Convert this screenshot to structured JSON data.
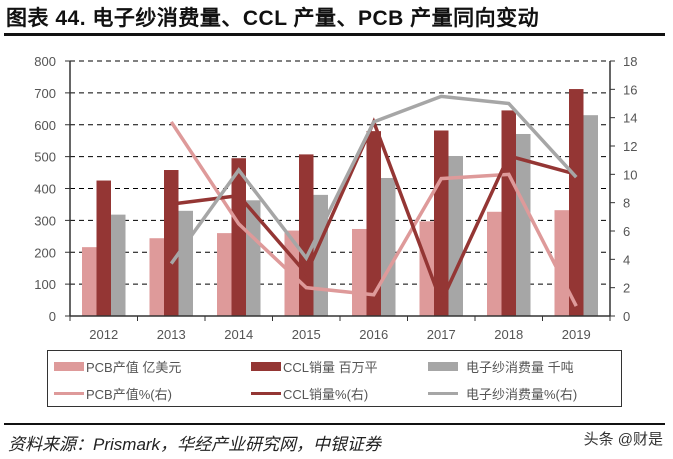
{
  "header": {
    "title": "图表 44. 电子纱消费量、CCL 产量、PCB 产量同向变动"
  },
  "footer": {
    "source": "资料来源：Prismark，华经产业研究网，中银证券",
    "watermark": "头条 @财是"
  },
  "colors": {
    "pcb": "#DE9A9A",
    "ccl": "#943634",
    "yarn": "#A6A6A6"
  },
  "legend": {
    "items": [
      {
        "label": "PCB产值 亿美元",
        "type": "bar",
        "color": "#DE9A9A"
      },
      {
        "label": "CCL销量 百万平",
        "type": "bar",
        "color": "#943634"
      },
      {
        "label": "电子纱消费量 千吨",
        "type": "bar",
        "color": "#A6A6A6"
      },
      {
        "label": "PCB产值%(右)",
        "type": "line",
        "color": "#DE9A9A"
      },
      {
        "label": "CCL销量%(右)",
        "type": "line",
        "color": "#943634"
      },
      {
        "label": "电子纱消费量%(右)",
        "type": "line",
        "color": "#A6A6A6"
      }
    ]
  },
  "chart_data": {
    "type": "bar",
    "title": "图表 44. 电子纱消费量、CCL 产量、PCB 产量同向变动",
    "xlabel": "",
    "ylabel": "",
    "categories": [
      "2012",
      "2013",
      "2014",
      "2015",
      "2016",
      "2017",
      "2018",
      "2019"
    ],
    "ylim": [
      0,
      800
    ],
    "yticks": [
      0,
      100,
      200,
      300,
      400,
      500,
      600,
      700,
      800
    ],
    "y2lim": [
      0,
      18
    ],
    "y2ticks": [
      0,
      2,
      4,
      6,
      8,
      10,
      12,
      14,
      16,
      18
    ],
    "grid": "dashed horizontal",
    "legend_position": "bottom",
    "series": [
      {
        "name": "PCB产值 亿美元",
        "type": "bar",
        "axis": "left",
        "values": [
          216,
          244,
          260,
          268,
          273,
          297,
          327,
          332
        ]
      },
      {
        "name": "CCL销量 百万平",
        "type": "bar",
        "axis": "left",
        "values": [
          425,
          458,
          495,
          507,
          580,
          582,
          645,
          712
        ]
      },
      {
        "name": "电子纱消费量 千吨",
        "type": "bar",
        "axis": "left",
        "values": [
          318,
          330,
          363,
          380,
          433,
          502,
          571,
          630
        ]
      },
      {
        "name": "PCB产值%(右)",
        "type": "line",
        "axis": "right",
        "values": [
          null,
          13.7,
          6.5,
          2.0,
          1.5,
          9.7,
          10.0,
          0.7
        ]
      },
      {
        "name": "CCL销量%(右)",
        "type": "line",
        "axis": "right",
        "values": [
          null,
          7.9,
          8.5,
          3.0,
          13.7,
          1.0,
          11.3,
          10.0
        ]
      },
      {
        "name": "电子纱消费量%(右)",
        "type": "line",
        "axis": "right",
        "values": [
          null,
          3.7,
          10.3,
          4.1,
          13.7,
          15.5,
          15.0,
          9.8
        ]
      }
    ]
  }
}
